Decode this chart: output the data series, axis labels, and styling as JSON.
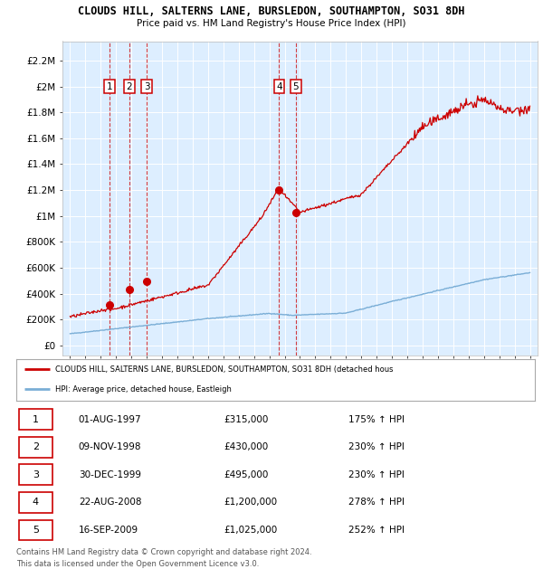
{
  "title1": "CLOUDS HILL, SALTERNS LANE, BURSLEDON, SOUTHAMPTON, SO31 8DH",
  "title2": "Price paid vs. HM Land Registry's House Price Index (HPI)",
  "bg_color": "#ddeeff",
  "y_ticks": [
    0,
    200000,
    400000,
    600000,
    800000,
    1000000,
    1200000,
    1400000,
    1600000,
    1800000,
    2000000,
    2200000
  ],
  "y_tick_labels": [
    "£0",
    "£200K",
    "£400K",
    "£600K",
    "£800K",
    "£1M",
    "£1.2M",
    "£1.4M",
    "£1.6M",
    "£1.8M",
    "£2M",
    "£2.2M"
  ],
  "transactions": [
    {
      "num": 1,
      "date": "01-AUG-1997",
      "year": 1997.58,
      "price": 315000,
      "label": "175% ↑ HPI"
    },
    {
      "num": 2,
      "date": "09-NOV-1998",
      "year": 1998.85,
      "price": 430000,
      "label": "230% ↑ HPI"
    },
    {
      "num": 3,
      "date": "30-DEC-1999",
      "year": 1999.99,
      "price": 495000,
      "label": "230% ↑ HPI"
    },
    {
      "num": 4,
      "date": "22-AUG-2008",
      "year": 2008.64,
      "price": 1200000,
      "label": "278% ↑ HPI"
    },
    {
      "num": 5,
      "date": "16-SEP-2009",
      "year": 2009.71,
      "price": 1025000,
      "label": "252% ↑ HPI"
    }
  ],
  "legend_label_red": "CLOUDS HILL, SALTERNS LANE, BURSLEDON, SOUTHAMPTON, SO31 8DH (detached hous",
  "legend_label_blue": "HPI: Average price, detached house, Eastleigh",
  "footnote1": "Contains HM Land Registry data © Crown copyright and database right 2024.",
  "footnote2": "This data is licensed under the Open Government Licence v3.0.",
  "red_color": "#cc0000",
  "blue_color": "#7aaed6"
}
